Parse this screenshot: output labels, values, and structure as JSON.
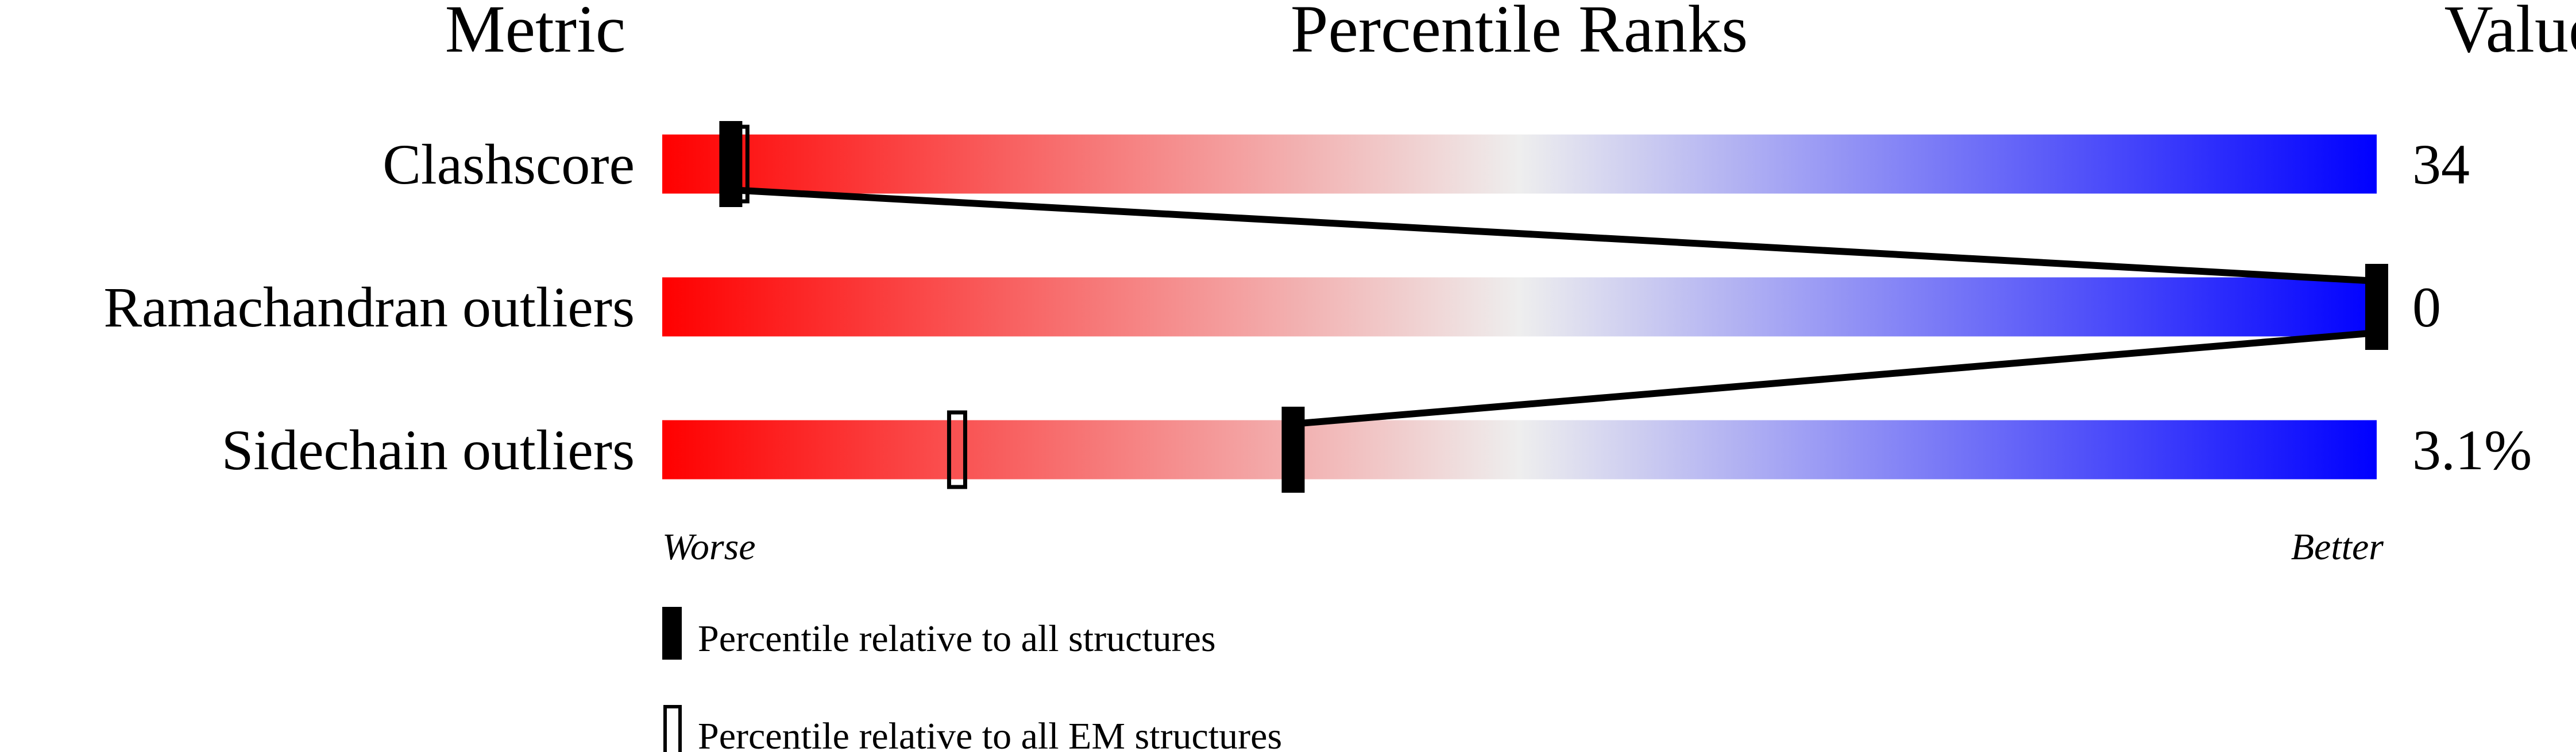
{
  "chart_data": {
    "type": "percentile-ranks",
    "headers": {
      "metric": "Metric",
      "ranks": "Percentile Ranks",
      "value": "Value"
    },
    "axis_labels": {
      "left": "Worse",
      "right": "Better"
    },
    "xlim": [
      0,
      100
    ],
    "gradient_colors": [
      "#ff0000",
      "#eeeeee",
      "#0000ff"
    ],
    "rows": [
      {
        "metric": "Clashscore",
        "value": "34",
        "percentile_all": 4,
        "percentile_em": 4.5
      },
      {
        "metric": "Ramachandran outliers",
        "value": "0",
        "percentile_all": 100,
        "percentile_em": 100
      },
      {
        "metric": "Sidechain outliers",
        "value": "3.1%",
        "percentile_all": 36.8,
        "percentile_em": 17.2
      }
    ],
    "legend": [
      {
        "marker": "filled",
        "label": "Percentile relative to all structures"
      },
      {
        "marker": "open",
        "label": "Percentile relative to all EM structures"
      }
    ]
  }
}
